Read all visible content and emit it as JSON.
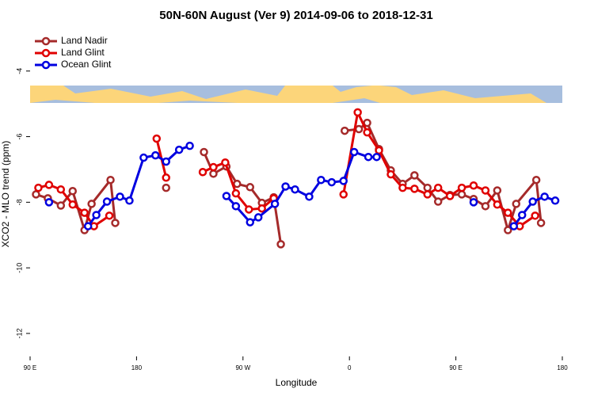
{
  "chart_data": {
    "type": "line",
    "title": "50N-60N August (Ver 9)   2014-09-06 to 2018-12-31",
    "xlabel": "Longitude",
    "ylabel": "XCO2 - MLO trend (ppm)",
    "xlim": [
      90,
      540
    ],
    "ylim": [
      -12.7,
      -2.8
    ],
    "xticks": [
      {
        "value": 90,
        "label": "90 E"
      },
      180,
      {
        "value": 270,
        "label": "90 W"
      },
      {
        "value": 360,
        "label": "0"
      },
      {
        "value": 450,
        "label": "90 E"
      },
      {
        "value": 540,
        "label": "180"
      }
    ],
    "yticks": [
      -4,
      -6,
      -8,
      -10,
      -12
    ],
    "legend": "top-left",
    "series": [
      {
        "name": "Land Nadir",
        "color": "#a52a2a",
        "x": [
          95,
          105,
          116,
          126,
          136,
          142,
          158,
          162,
          null,
          205,
          null,
          237,
          245,
          256,
          265,
          276,
          286,
          296,
          302,
          null,
          356,
          368,
          375,
          385,
          395,
          405,
          415,
          426,
          435,
          445,
          455,
          465,
          475,
          485,
          494,
          501,
          518,
          522
        ],
        "values": [
          -7.76,
          -7.88,
          -8.1,
          -7.66,
          -8.85,
          -8.05,
          -7.32,
          -8.63,
          null,
          -7.56,
          null,
          -6.47,
          -7.13,
          -6.91,
          -7.44,
          -7.54,
          -8.02,
          -7.85,
          -9.28,
          null,
          -5.82,
          -5.77,
          -5.58,
          -6.38,
          -7.03,
          -7.44,
          -7.18,
          -7.56,
          -7.98,
          -7.78,
          -7.76,
          -7.9,
          -8.12,
          -7.64,
          -8.85,
          -8.05,
          -7.32,
          -8.63
        ]
      },
      {
        "name": "Land Glint",
        "color": "#e00000",
        "x": [
          97,
          106,
          116,
          126,
          136,
          144,
          157,
          null,
          197,
          205,
          null,
          236,
          245,
          255,
          264,
          275,
          286,
          296,
          null,
          355,
          367,
          375,
          385,
          395,
          405,
          415,
          426,
          435,
          445,
          455,
          465,
          475,
          485,
          494,
          504,
          517
        ],
        "values": [
          -7.56,
          -7.47,
          -7.61,
          -8.07,
          -8.32,
          -8.73,
          -8.41,
          null,
          -6.06,
          -7.25,
          null,
          -7.08,
          -6.93,
          -6.79,
          -7.73,
          -8.22,
          -8.19,
          -7.88,
          null,
          -7.76,
          -5.26,
          -5.87,
          -6.42,
          -7.15,
          -7.56,
          -7.59,
          -7.76,
          -7.56,
          -7.81,
          -7.56,
          -7.49,
          -7.64,
          -8.07,
          -8.32,
          -8.73,
          -8.41
        ]
      },
      {
        "name": "Ocean Glint",
        "color": "#0000e0",
        "x": [
          106,
          null,
          139,
          146,
          155,
          166,
          174,
          186,
          196,
          205,
          216,
          225,
          null,
          256,
          264,
          276,
          283,
          297,
          306,
          314,
          326,
          336,
          345,
          355,
          364,
          376,
          383,
          null,
          465,
          null,
          499,
          506,
          515,
          525,
          534
        ],
        "values": [
          -8.0,
          null,
          -8.73,
          -8.39,
          -7.98,
          -7.83,
          -7.95,
          -6.64,
          -6.57,
          -6.76,
          -6.4,
          -6.28,
          null,
          -7.81,
          -8.12,
          -8.61,
          -8.46,
          -8.05,
          -7.52,
          -7.61,
          -7.83,
          -7.32,
          -7.39,
          -7.35,
          -6.47,
          -6.62,
          -6.62,
          null,
          -8.0,
          null,
          -8.73,
          -8.39,
          -7.98,
          -7.83,
          -7.95
        ]
      }
    ]
  }
}
